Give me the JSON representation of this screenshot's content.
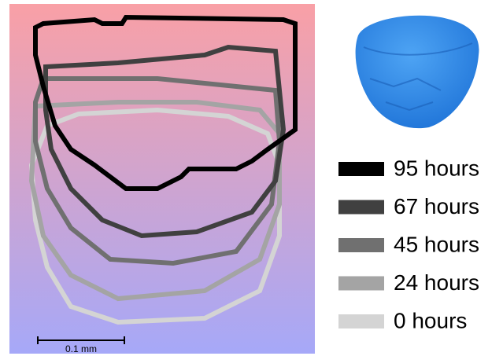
{
  "scale_bar": {
    "label": "0.1 mm"
  },
  "legend": {
    "items": [
      {
        "label": "95 hours"
      },
      {
        "label": "67 hours"
      },
      {
        "label": "45 hours"
      },
      {
        "label": "24 hours"
      },
      {
        "label": "0 hours"
      }
    ]
  }
}
